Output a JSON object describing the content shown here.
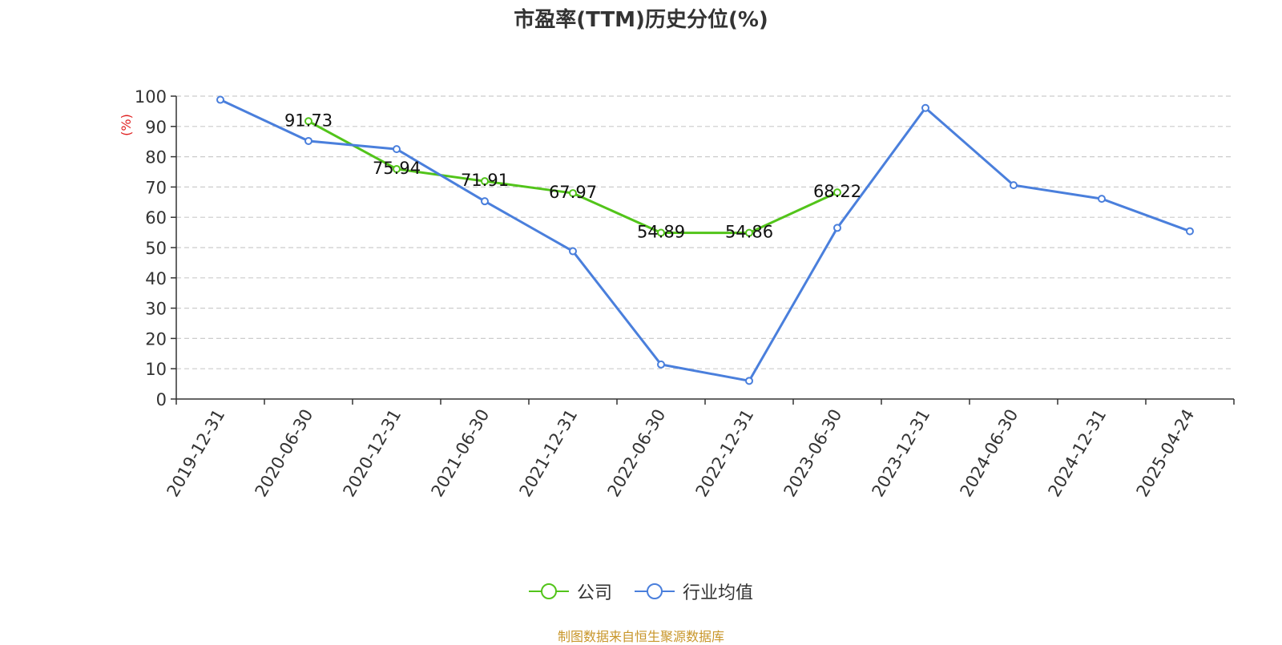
{
  "chart_data": {
    "type": "line",
    "title": "市盈率(TTM)历史分位(%)",
    "ylabel": "(%)",
    "ylim": [
      0,
      100
    ],
    "yticks": [
      0,
      10,
      20,
      30,
      40,
      50,
      60,
      70,
      80,
      90,
      100
    ],
    "categories": [
      "2019-12-31",
      "2020-06-30",
      "2020-12-31",
      "2021-06-30",
      "2021-12-31",
      "2022-06-30",
      "2022-12-31",
      "2023-06-30",
      "2023-12-31",
      "2024-06-30",
      "2024-12-31",
      "2025-04-24"
    ],
    "grid": true,
    "legend_position": "bottom",
    "series": [
      {
        "name": "公司",
        "color": "#52c41a",
        "values": [
          null,
          91.73,
          75.94,
          71.91,
          67.97,
          54.89,
          54.86,
          68.22,
          null,
          null,
          null,
          null
        ],
        "labels": [
          "",
          "91.73",
          "75.94",
          "71.91",
          "67.97",
          "54.89",
          "54.86",
          "68.22",
          "",
          "",
          "",
          ""
        ]
      },
      {
        "name": "行业均值",
        "color": "#4a7fdc",
        "values": [
          98.8,
          85.2,
          82.5,
          65.3,
          48.8,
          11.4,
          6.0,
          56.5,
          96.1,
          70.6,
          66.1,
          55.4
        ],
        "labels": []
      }
    ]
  },
  "footer": {
    "text": "制图数据来自恒生聚源数据库",
    "color": "#c8962a"
  },
  "ylabel_color": "#e02020"
}
